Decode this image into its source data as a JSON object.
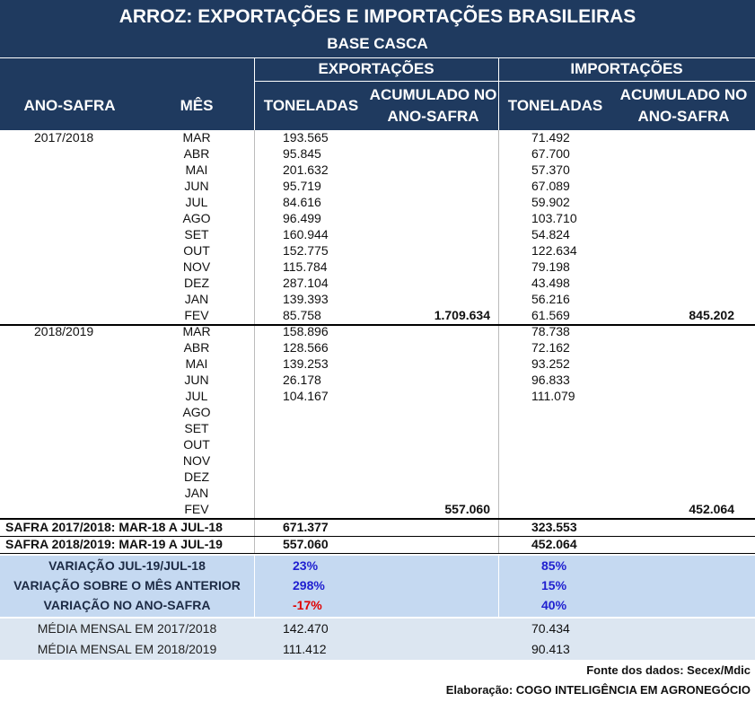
{
  "title": "ARROZ: EXPORTAÇÕES E IMPORTAÇÕES BRASILEIRAS",
  "subtitle": "BASE CASCA",
  "header": {
    "exports": "EXPORTAÇÕES",
    "imports": "IMPORTAÇÕES",
    "columns": [
      "ANO-SAFRA",
      "MÊS",
      "TONELADAS",
      "ACUMULADO NO ANO-SAFRA",
      "TONELADAS",
      "ACUMULADO NO ANO-SAFRA"
    ]
  },
  "seasons": [
    {
      "label": "2017/2018",
      "rows": [
        [
          "MAR",
          "193.565",
          null,
          "71.492",
          null
        ],
        [
          "ABR",
          "95.845",
          null,
          "67.700",
          null
        ],
        [
          "MAI",
          "201.632",
          null,
          "57.370",
          null
        ],
        [
          "JUN",
          "95.719",
          null,
          "67.089",
          null
        ],
        [
          "JUL",
          "84.616",
          null,
          "59.902",
          null
        ],
        [
          "AGO",
          "96.499",
          null,
          "103.710",
          null
        ],
        [
          "SET",
          "160.944",
          null,
          "54.824",
          null
        ],
        [
          "OUT",
          "152.775",
          null,
          "122.634",
          null
        ],
        [
          "NOV",
          "115.784",
          null,
          "79.198",
          null
        ],
        [
          "DEZ",
          "287.104",
          null,
          "43.498",
          null
        ],
        [
          "JAN",
          "139.393",
          null,
          "56.216",
          null
        ],
        [
          "FEV",
          "85.758",
          "1.709.634",
          "61.569",
          "845.202"
        ]
      ]
    },
    {
      "label": "2018/2019",
      "rows": [
        [
          "MAR",
          "158.896",
          null,
          "78.738",
          null
        ],
        [
          "ABR",
          "128.566",
          null,
          "72.162",
          null
        ],
        [
          "MAI",
          "139.253",
          null,
          "93.252",
          null
        ],
        [
          "JUN",
          "26.178",
          null,
          "96.833",
          null
        ],
        [
          "JUL",
          "104.167",
          null,
          "111.079",
          null
        ],
        [
          "AGO",
          null,
          null,
          null,
          null
        ],
        [
          "SET",
          null,
          null,
          null,
          null
        ],
        [
          "OUT",
          null,
          null,
          null,
          null
        ],
        [
          "NOV",
          null,
          null,
          null,
          null
        ],
        [
          "DEZ",
          null,
          null,
          null,
          null
        ],
        [
          "JAN",
          null,
          null,
          null,
          null
        ],
        [
          "FEV",
          null,
          "557.060",
          null,
          "452.064"
        ]
      ]
    }
  ],
  "totals": [
    [
      "SAFRA 2017/2018: MAR-18 A JUL-18",
      "671.377",
      "323.553"
    ],
    [
      "SAFRA 2018/2019: MAR-19 A JUL-19",
      "557.060",
      "452.064"
    ]
  ],
  "variations": [
    [
      "VARIAÇÃO JUL-19/JUL-18",
      "23%",
      "85%"
    ],
    [
      "VARIAÇÃO SOBRE O MÊS ANTERIOR",
      "298%",
      "15%"
    ],
    [
      "VARIAÇÃO NO ANO-SAFRA",
      "-17%",
      "40%"
    ]
  ],
  "averages": [
    [
      "MÉDIA MENSAL EM 2017/2018",
      "142.470",
      "70.434"
    ],
    [
      "MÉDIA MENSAL EM 2018/2019",
      "111.412",
      "90.413"
    ]
  ],
  "footer": {
    "source": "Fonte dos dados: Secex/Mdic",
    "credit": "Elaboração: COGO INTELIGÊNCIA EM AGRONEGÓCIO"
  }
}
